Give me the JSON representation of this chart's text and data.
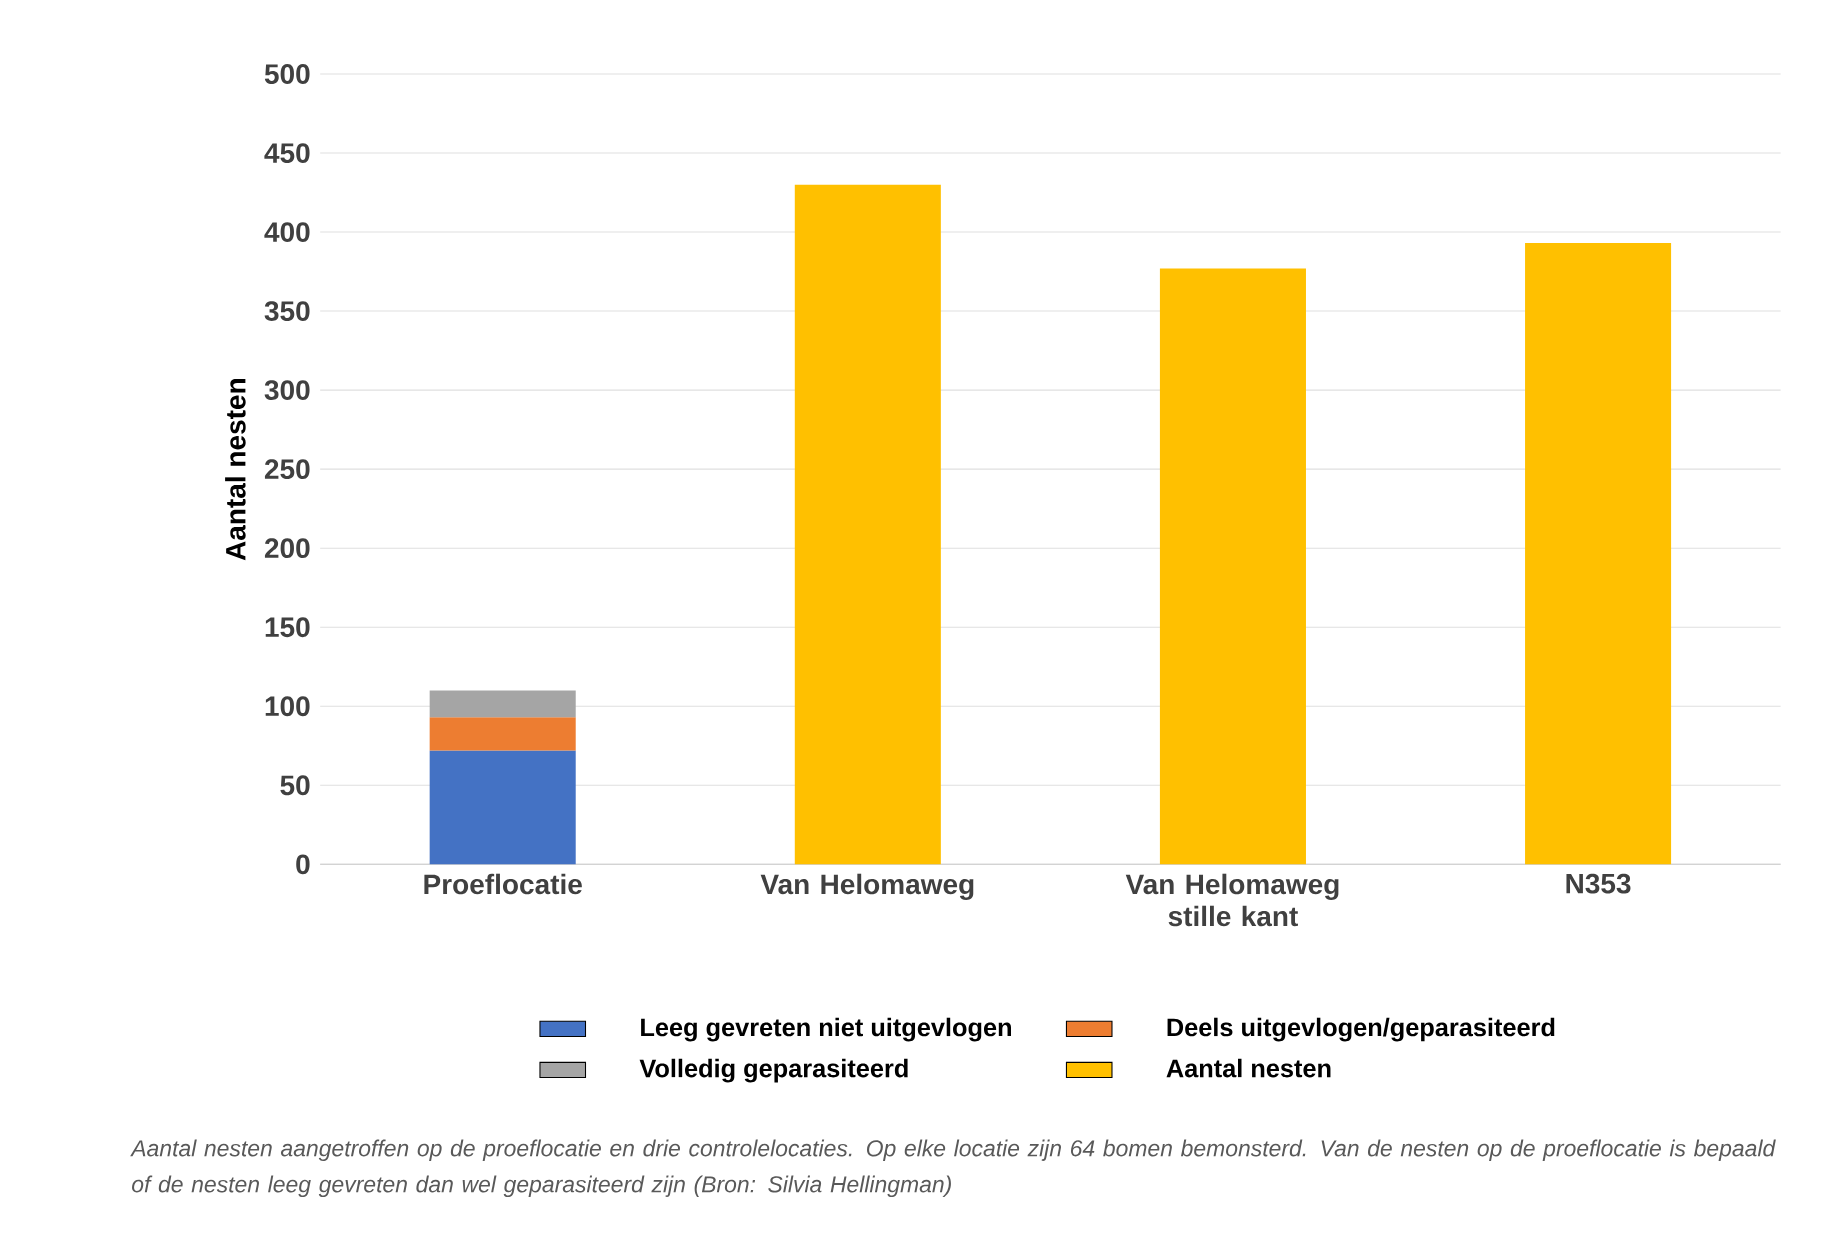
{
  "chart_data": {
    "type": "bar",
    "stacked": true,
    "ylabel": "Aantal nesten",
    "categories": [
      "Proeflocatie",
      "Van Helomaweg",
      "Van Helomaweg stille kant",
      "N353"
    ],
    "series": [
      {
        "name": "Leeg gevreten niet uitgevlogen",
        "color": "#4472c4",
        "values": [
          72,
          null,
          null,
          null
        ]
      },
      {
        "name": "Deels uitgevlogen/geparasiteerd",
        "color": "#ed7d31",
        "values": [
          21,
          null,
          null,
          null
        ]
      },
      {
        "name": "Volledig geparasiteerd",
        "color": "#a5a5a5",
        "values": [
          17,
          null,
          null,
          null
        ]
      },
      {
        "name": "Aantal nesten",
        "color": "#ffc000",
        "values": [
          null,
          430,
          377,
          393
        ]
      }
    ],
    "ylim": [
      0,
      500
    ],
    "yticks": [
      0,
      50,
      100,
      150,
      200,
      250,
      300,
      350,
      400,
      450,
      500
    ],
    "grid": "y",
    "legend": "bottom",
    "annotations": [
      "Aantal nesten aangetroffen op de proeflocatie en drie controlelocaties. Op elke locatie zijn 64 bomen bemonsterd. Van de nesten op de proeflocatie is bepaald of de nesten leeg gevreten dan wel geparasiteerd zijn (Bron: Silvia Hellingman)"
    ]
  }
}
